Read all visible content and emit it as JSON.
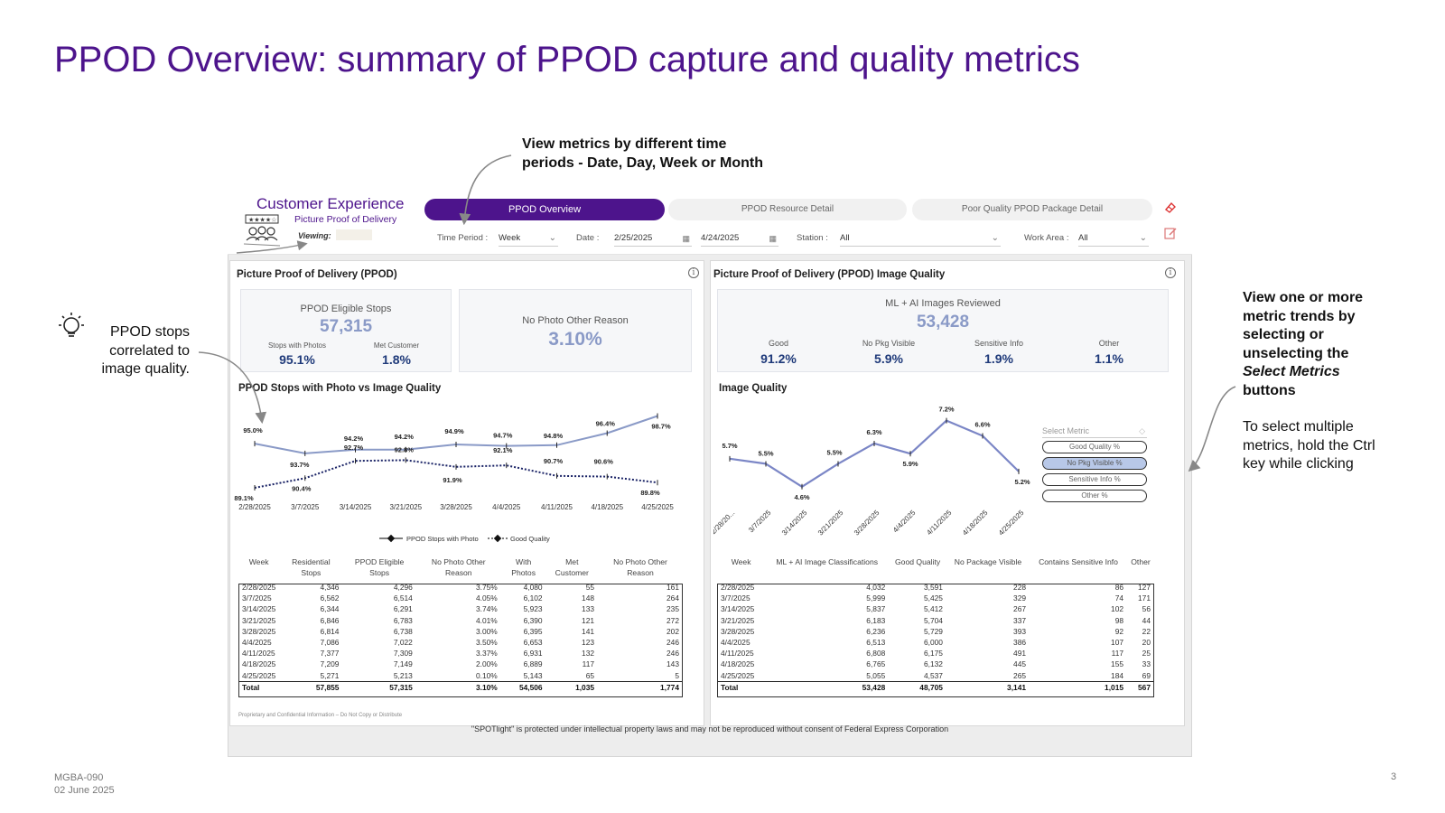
{
  "slide": {
    "title": "PPOD Overview: summary of PPOD capture and quality metrics",
    "callout_top": [
      "View metrics by different time",
      "periods - Date, Day, Week or Month"
    ],
    "callout_left": [
      "PPOD stops",
      "correlated to",
      "image quality."
    ],
    "callout_right": {
      "lines": [
        "View one or more",
        "metric trends by",
        "selecting or",
        "unselecting the"
      ],
      "italic": "Select Metrics",
      "last": "buttons",
      "note": [
        "To select multiple",
        "metrics, hold the Ctrl",
        "key while clicking"
      ]
    },
    "doc_id": "MGBA-090",
    "date": "02 June 2025",
    "page": "3"
  },
  "dashboard": {
    "brand_title": "Customer Experience",
    "brand_subtitle": "Picture Proof of Delivery",
    "viewing_label": "Viewing:",
    "tabs": [
      "PPOD Overview",
      "PPOD Resource Detail",
      "Poor Quality PPOD Package Detail"
    ],
    "filters": {
      "time_period_label": "Time Period :",
      "time_period_value": "Week",
      "date_label": "Date :",
      "date_from": "2/25/2025",
      "date_to": "4/24/2025",
      "station_label": "Station :",
      "station_value": "All",
      "work_area_label": "Work Area :",
      "work_area_value": "All"
    },
    "left_panel": {
      "title": "Picture Proof of Delivery (PPOD)",
      "eligible_label": "PPOD Eligible Stops",
      "eligible_value": "57,315",
      "stops_photos_label": "Stops with Photos",
      "stops_photos_value": "95.1%",
      "met_customer_label": "Met Customer",
      "met_customer_value": "1.8%",
      "no_photo_label": "No Photo Other Reason",
      "no_photo_value": "3.10%",
      "chart_title": "PPOD Stops with Photo vs Image Quality",
      "legend": [
        "PPOD Stops with Photo",
        "Good Quality"
      ],
      "table_headers": [
        "Week",
        "Residential Stops",
        "PPOD Eligible Stops",
        "No Photo Other Reason",
        "With Photos",
        "Met Customer",
        "No Photo Other Reason"
      ],
      "table_rows": [
        [
          "2/28/2025",
          "4,346",
          "4,296",
          "3.75%",
          "4,080",
          "55",
          "161"
        ],
        [
          "3/7/2025",
          "6,562",
          "6,514",
          "4.05%",
          "6,102",
          "148",
          "264"
        ],
        [
          "3/14/2025",
          "6,344",
          "6,291",
          "3.74%",
          "5,923",
          "133",
          "235"
        ],
        [
          "3/21/2025",
          "6,846",
          "6,783",
          "4.01%",
          "6,390",
          "121",
          "272"
        ],
        [
          "3/28/2025",
          "6,814",
          "6,738",
          "3.00%",
          "6,395",
          "141",
          "202"
        ],
        [
          "4/4/2025",
          "7,086",
          "7,022",
          "3.50%",
          "6,653",
          "123",
          "246"
        ],
        [
          "4/11/2025",
          "7,377",
          "7,309",
          "3.37%",
          "6,931",
          "132",
          "246"
        ],
        [
          "4/18/2025",
          "7,209",
          "7,149",
          "2.00%",
          "6,889",
          "117",
          "143"
        ],
        [
          "4/25/2025",
          "5,271",
          "5,213",
          "0.10%",
          "5,143",
          "65",
          "5"
        ]
      ],
      "table_total": [
        "Total",
        "57,855",
        "57,315",
        "3.10%",
        "54,506",
        "1,035",
        "1,774"
      ],
      "confidential": "Proprietary and Confidential Information – Do Not Copy or Distribute"
    },
    "right_panel": {
      "title": "Picture Proof of Delivery (PPOD) Image Quality",
      "reviewed_label": "ML + AI Images Reviewed",
      "reviewed_value": "53,428",
      "kpis": [
        {
          "label": "Good",
          "value": "91.2%"
        },
        {
          "label": "No Pkg Visible",
          "value": "5.9%"
        },
        {
          "label": "Sensitive Info",
          "value": "1.9%"
        },
        {
          "label": "Other",
          "value": "1.1%"
        }
      ],
      "chart_title": "Image Quality",
      "select_metric_label": "Select Metric",
      "select_buttons": [
        "Good Quality %",
        "No Pkg Visible %",
        "Sensitive Info %",
        "Other %"
      ],
      "table_headers": [
        "Week",
        "ML + AI Image Classifications",
        "Good Quality",
        "No Package Visible",
        "Contains Sensitive Info",
        "Other"
      ],
      "table_rows": [
        [
          "2/28/2025",
          "4,032",
          "3,591",
          "228",
          "86",
          "127"
        ],
        [
          "3/7/2025",
          "5,999",
          "5,425",
          "329",
          "74",
          "171"
        ],
        [
          "3/14/2025",
          "5,837",
          "5,412",
          "267",
          "102",
          "56"
        ],
        [
          "3/21/2025",
          "6,183",
          "5,704",
          "337",
          "98",
          "44"
        ],
        [
          "3/28/2025",
          "6,236",
          "5,729",
          "393",
          "92",
          "22"
        ],
        [
          "4/4/2025",
          "6,513",
          "6,000",
          "386",
          "107",
          "20"
        ],
        [
          "4/11/2025",
          "6,808",
          "6,175",
          "491",
          "117",
          "25"
        ],
        [
          "4/18/2025",
          "6,765",
          "6,132",
          "445",
          "155",
          "33"
        ],
        [
          "4/25/2025",
          "5,055",
          "4,537",
          "265",
          "184",
          "69"
        ]
      ],
      "table_total": [
        "Total",
        "53,428",
        "48,705",
        "3,141",
        "1,015",
        "567"
      ]
    },
    "copyright": "\"SPOTlight\" is protected under intellectual property laws and may not be reproduced without consent of Federal Express Corporation"
  },
  "chart_data": [
    {
      "type": "line",
      "title": "PPOD Stops with Photo vs Image Quality",
      "categories": [
        "2/28/2025",
        "3/7/2025",
        "3/14/2025",
        "3/21/2025",
        "3/28/2025",
        "4/4/2025",
        "4/11/2025",
        "4/18/2025",
        "4/25/2025"
      ],
      "series": [
        {
          "name": "PPOD Stops with Photo",
          "values": [
            95.0,
            93.7,
            94.2,
            94.2,
            94.9,
            94.7,
            94.8,
            96.4,
            98.7
          ],
          "labels": [
            "95.0%",
            "93.7%",
            "94.2%",
            "94.2%",
            "94.9%",
            "94.7%",
            "94.8%",
            "96.4%",
            "98.7%"
          ],
          "color": "#8a9ac7",
          "style": "solid"
        },
        {
          "name": "Good Quality",
          "values": [
            89.1,
            90.4,
            92.7,
            92.8,
            91.9,
            92.1,
            90.7,
            90.6,
            89.8
          ],
          "labels": [
            "89.1%",
            "90.4%",
            "92.7%",
            "92.8%",
            "91.9%",
            "92.1%",
            "90.7%",
            "90.6%",
            "89.8%"
          ],
          "color": "#1a2366",
          "style": "dotted"
        }
      ],
      "legend": "bottom"
    },
    {
      "type": "line",
      "title": "Image Quality",
      "categories": [
        "2/28/20...",
        "3/7/2025",
        "3/14/2025",
        "3/21/2025",
        "3/28/2025",
        "4/4/2025",
        "4/11/2025",
        "4/18/2025",
        "4/25/2025"
      ],
      "series": [
        {
          "name": "No Pkg Visible %",
          "values": [
            5.7,
            5.5,
            4.6,
            5.5,
            6.3,
            5.9,
            7.2,
            6.6,
            5.2
          ],
          "labels": [
            "5.7%",
            "5.5%",
            "4.6%",
            "5.5%",
            "6.3%",
            "5.9%",
            "7.2%",
            "6.6%",
            "5.2%"
          ],
          "color": "#7b86c6",
          "style": "solid"
        }
      ]
    }
  ]
}
